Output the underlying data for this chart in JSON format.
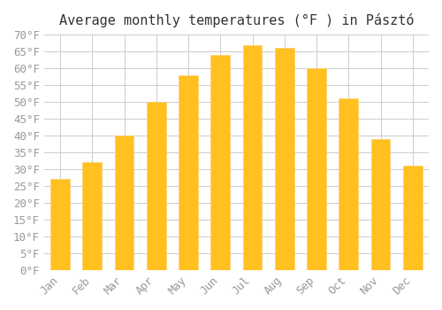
{
  "title": "Average monthly temperatures (°F ) in Pásztó",
  "months": [
    "Jan",
    "Feb",
    "Mar",
    "Apr",
    "May",
    "Jun",
    "Jul",
    "Aug",
    "Sep",
    "Oct",
    "Nov",
    "Dec"
  ],
  "values": [
    27,
    32,
    40,
    50,
    58,
    64,
    67,
    66,
    60,
    51,
    39,
    31
  ],
  "bar_color": "#FFC020",
  "bar_edge_color": "#FFD070",
  "background_color": "#FFFFFF",
  "grid_color": "#CCCCCC",
  "text_color": "#999999",
  "ylim": [
    0,
    70
  ],
  "ytick_step": 5,
  "title_fontsize": 11,
  "tick_fontsize": 9,
  "font_family": "monospace"
}
